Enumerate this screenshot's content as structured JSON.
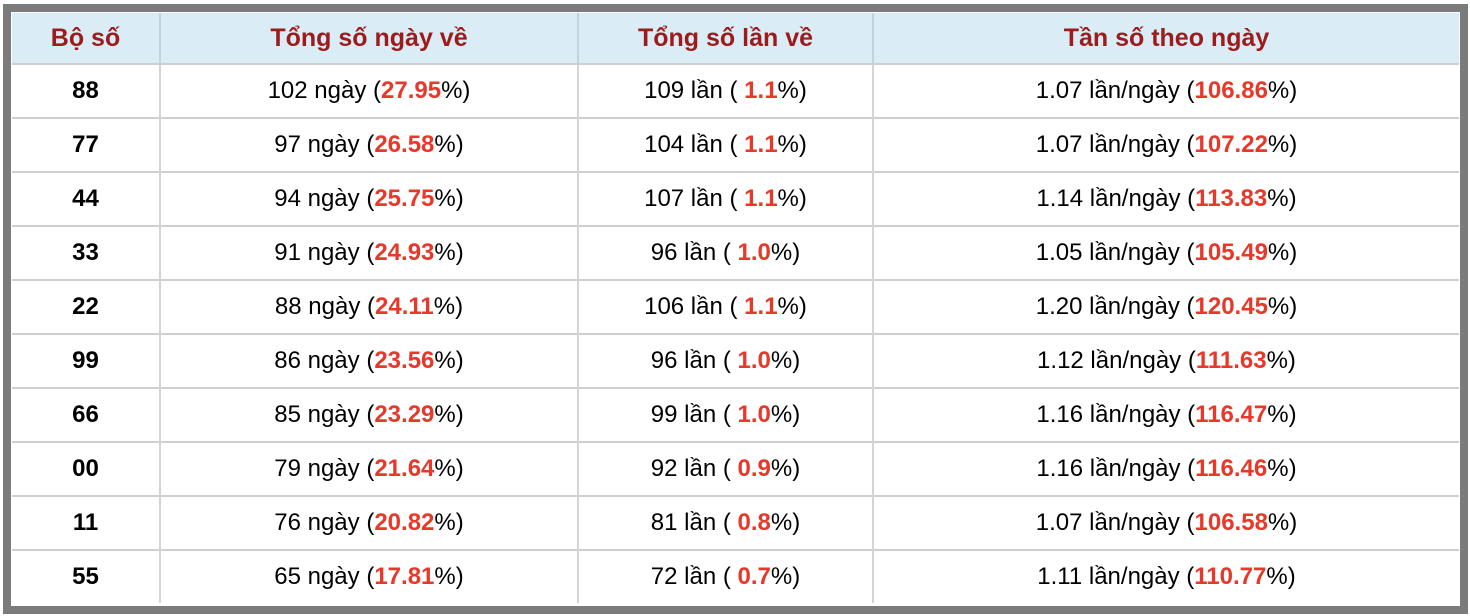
{
  "theme": {
    "frame_border": "#7b7b7b",
    "header_bg": "#daecf6",
    "header_text": "#9c1c1c",
    "highlight_red": "#e8382a",
    "body_text": "#000000",
    "row_separator": "#cfcfcf",
    "row_bg": "#ffffff"
  },
  "table": {
    "columns": [
      "Bộ số",
      "Tổng số ngày về",
      "Tổng số lần về",
      "Tần số theo ngày"
    ],
    "rows": [
      {
        "pair": "88",
        "days_pre": "102 ngày (",
        "days_val": "27.95",
        "days_post": "%)",
        "times_pre": "109 lần ( ",
        "times_val": "1.1",
        "times_post": "%)",
        "freq_pre": "1.07 lần/ngày (",
        "freq_val": "106.86",
        "freq_post": "%)"
      },
      {
        "pair": "77",
        "days_pre": "97 ngày (",
        "days_val": "26.58",
        "days_post": "%)",
        "times_pre": "104 lần ( ",
        "times_val": "1.1",
        "times_post": "%)",
        "freq_pre": "1.07 lần/ngày (",
        "freq_val": "107.22",
        "freq_post": "%)"
      },
      {
        "pair": "44",
        "days_pre": "94 ngày (",
        "days_val": "25.75",
        "days_post": "%)",
        "times_pre": "107 lần ( ",
        "times_val": "1.1",
        "times_post": "%)",
        "freq_pre": "1.14 lần/ngày (",
        "freq_val": "113.83",
        "freq_post": "%)"
      },
      {
        "pair": "33",
        "days_pre": "91 ngày (",
        "days_val": "24.93",
        "days_post": "%)",
        "times_pre": "96 lần ( ",
        "times_val": "1.0",
        "times_post": "%)",
        "freq_pre": "1.05 lần/ngày (",
        "freq_val": "105.49",
        "freq_post": "%)"
      },
      {
        "pair": "22",
        "days_pre": "88 ngày (",
        "days_val": "24.11",
        "days_post": "%)",
        "times_pre": "106 lần ( ",
        "times_val": "1.1",
        "times_post": "%)",
        "freq_pre": "1.20 lần/ngày (",
        "freq_val": "120.45",
        "freq_post": "%)"
      },
      {
        "pair": "99",
        "days_pre": "86 ngày (",
        "days_val": "23.56",
        "days_post": "%)",
        "times_pre": "96 lần ( ",
        "times_val": "1.0",
        "times_post": "%)",
        "freq_pre": "1.12 lần/ngày (",
        "freq_val": "111.63",
        "freq_post": "%)"
      },
      {
        "pair": "66",
        "days_pre": "85 ngày (",
        "days_val": "23.29",
        "days_post": "%)",
        "times_pre": "99 lần ( ",
        "times_val": "1.0",
        "times_post": "%)",
        "freq_pre": "1.16 lần/ngày (",
        "freq_val": "116.47",
        "freq_post": "%)"
      },
      {
        "pair": "00",
        "days_pre": "79 ngày (",
        "days_val": "21.64",
        "days_post": "%)",
        "times_pre": "92 lần ( ",
        "times_val": "0.9",
        "times_post": "%)",
        "freq_pre": "1.16 lần/ngày (",
        "freq_val": "116.46",
        "freq_post": "%)"
      },
      {
        "pair": "11",
        "days_pre": "76 ngày (",
        "days_val": "20.82",
        "days_post": "%)",
        "times_pre": "81 lần ( ",
        "times_val": "0.8",
        "times_post": "%)",
        "freq_pre": "1.07 lần/ngày (",
        "freq_val": "106.58",
        "freq_post": "%)"
      },
      {
        "pair": "55",
        "days_pre": "65 ngày (",
        "days_val": "17.81",
        "days_post": "%)",
        "times_pre": "72 lần ( ",
        "times_val": "0.7",
        "times_post": "%)",
        "freq_pre": "1.11 lần/ngày (",
        "freq_val": "110.77",
        "freq_post": "%)"
      }
    ]
  },
  "chart_data": {
    "type": "table",
    "title": "",
    "columns": [
      "Bộ số",
      "Tổng số ngày về",
      "Tổng số lần về",
      "Tần số theo ngày"
    ],
    "rows": [
      [
        "88",
        "102 ngày (27.95%)",
        "109 lần ( 1.1%)",
        "1.07 lần/ngày (106.86%)"
      ],
      [
        "77",
        "97 ngày (26.58%)",
        "104 lần ( 1.1%)",
        "1.07 lần/ngày (107.22%)"
      ],
      [
        "44",
        "94 ngày (25.75%)",
        "107 lần ( 1.1%)",
        "1.14 lần/ngày (113.83%)"
      ],
      [
        "33",
        "91 ngày (24.93%)",
        "96 lần ( 1.0%)",
        "1.05 lần/ngày (105.49%)"
      ],
      [
        "22",
        "88 ngày (24.11%)",
        "106 lần ( 1.1%)",
        "1.20 lần/ngày (120.45%)"
      ],
      [
        "99",
        "86 ngày (23.56%)",
        "96 lần ( 1.0%)",
        "1.12 lần/ngày (111.63%)"
      ],
      [
        "66",
        "85 ngày (23.29%)",
        "99 lần ( 1.0%)",
        "1.16 lần/ngày (116.47%)"
      ],
      [
        "00",
        "79 ngày (21.64%)",
        "92 lần ( 0.9%)",
        "1.16 lần/ngày (116.46%)"
      ],
      [
        "11",
        "76 ngày (20.82%)",
        "81 lần ( 0.8%)",
        "1.07 lần/ngày (106.58%)"
      ],
      [
        "55",
        "65 ngày (17.81%)",
        "72 lần ( 0.7%)",
        "1.11 lần/ngày (110.77%)"
      ]
    ],
    "numeric": {
      "pairs": [
        "88",
        "77",
        "44",
        "33",
        "22",
        "99",
        "66",
        "00",
        "11",
        "55"
      ],
      "days": [
        102,
        97,
        94,
        91,
        88,
        86,
        85,
        79,
        76,
        65
      ],
      "days_pct": [
        27.95,
        26.58,
        25.75,
        24.93,
        24.11,
        23.56,
        23.29,
        21.64,
        20.82,
        17.81
      ],
      "times": [
        109,
        104,
        107,
        96,
        106,
        96,
        99,
        92,
        81,
        72
      ],
      "times_pct": [
        1.1,
        1.1,
        1.1,
        1.0,
        1.1,
        1.0,
        1.0,
        0.9,
        0.8,
        0.7
      ],
      "freq_per_day": [
        1.07,
        1.07,
        1.14,
        1.05,
        1.2,
        1.12,
        1.16,
        1.16,
        1.07,
        1.11
      ],
      "freq_pct": [
        106.86,
        107.22,
        113.83,
        105.49,
        120.45,
        111.63,
        116.47,
        116.46,
        106.58,
        110.77
      ]
    }
  }
}
